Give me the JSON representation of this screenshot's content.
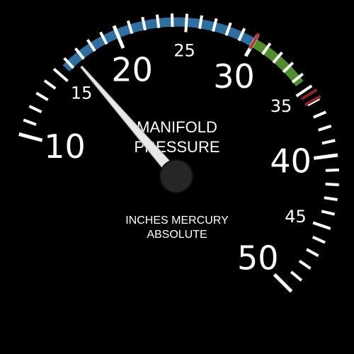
{
  "gauge": {
    "title_line1": "MANIFOLD",
    "title_line2": "PRESSURE",
    "units_line1": "INCHES MERCURY",
    "units_line2": "ABSOLUTE",
    "scale_min": 10,
    "scale_max": 50,
    "reading": 16.5,
    "major_labels": [
      {
        "value": 10,
        "text": "10",
        "size": "large"
      },
      {
        "value": 15,
        "text": "15",
        "size": "small"
      },
      {
        "value": 20,
        "text": "20",
        "size": "large"
      },
      {
        "value": 25,
        "text": "25",
        "size": "small"
      },
      {
        "value": 30,
        "text": "30",
        "size": "large"
      },
      {
        "value": 35,
        "text": "35",
        "size": "small"
      },
      {
        "value": 40,
        "text": "40",
        "size": "large"
      },
      {
        "value": 45,
        "text": "45",
        "size": "small"
      },
      {
        "value": 50,
        "text": "50",
        "size": "large"
      }
    ],
    "arcs": [
      {
        "name": "blue-range",
        "from": 15.6,
        "to": 30,
        "color": "#2f6f9f"
      },
      {
        "name": "green-range",
        "from": 30,
        "to": 34.4,
        "color": "#4e8f2c"
      }
    ],
    "redlines": [
      {
        "value": 30,
        "color": "#b23232"
      },
      {
        "value": 35.4,
        "color": "#8b2525"
      },
      {
        "value": 35.9,
        "color": "#8b2525"
      }
    ],
    "colors": {
      "background": "#000000",
      "tick": "#ffffff",
      "needle": "#e8e8e8",
      "hub": "#2a2a2a"
    }
  }
}
